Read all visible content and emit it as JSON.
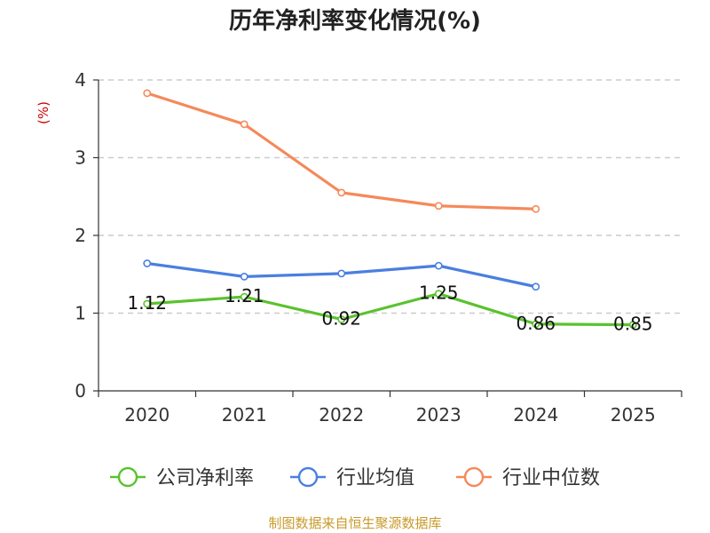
{
  "chart_data": {
    "type": "line",
    "title": "历年净利率变化情况(%)",
    "ylabel": "(%)",
    "xlabel": "",
    "categories": [
      "2020",
      "2021",
      "2022",
      "2023",
      "2024",
      "2025"
    ],
    "ylim": [
      0,
      4
    ],
    "yticks": [
      0,
      1,
      2,
      3,
      4
    ],
    "grid": true,
    "legend_position": "bottom",
    "series": [
      {
        "name": "公司净利率",
        "color": "#5ac22e",
        "values": [
          1.12,
          1.21,
          0.92,
          1.25,
          0.86,
          0.85
        ],
        "labels": [
          "1.12",
          "1.21",
          "0.92",
          "1.25",
          "0.86",
          "0.85"
        ]
      },
      {
        "name": "行业均值",
        "color": "#4a7fe0",
        "values": [
          1.64,
          1.47,
          1.51,
          1.61,
          1.34,
          null
        ]
      },
      {
        "name": "行业中位数",
        "color": "#f5895a",
        "values": [
          3.83,
          3.43,
          2.55,
          2.38,
          2.34,
          null
        ]
      }
    ],
    "source": "制图数据来自恒生聚源数据库"
  }
}
